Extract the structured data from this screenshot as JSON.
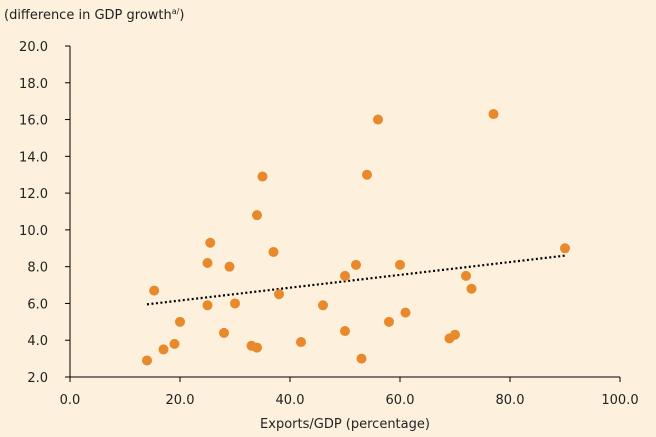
{
  "colors": {
    "background": "#fdf0dc",
    "point": "#e8892b",
    "axis": "#000000",
    "trend": "#000000"
  },
  "chart_data": {
    "type": "scatter",
    "title": "",
    "ylabel": "(difference in GDP growth",
    "ylabel_sup": "a/",
    "ylabel_close": ")",
    "xlabel": "Exports/GDP (percentage)",
    "xlim": [
      0,
      100
    ],
    "ylim": [
      2,
      20
    ],
    "x_ticks": [
      "0.0",
      "20.0",
      "40.0",
      "60.0",
      "80.0",
      "100.0"
    ],
    "y_ticks": [
      "2.0",
      "4.0",
      "6.0",
      "8.0",
      "10.0",
      "12.0",
      "14.0",
      "16.0",
      "18.0",
      "20.0"
    ],
    "grid": false,
    "points": [
      [
        14,
        2.9
      ],
      [
        15.3,
        6.7
      ],
      [
        17,
        3.5
      ],
      [
        19,
        3.8
      ],
      [
        20,
        5.0
      ],
      [
        25,
        8.2
      ],
      [
        25.5,
        9.3
      ],
      [
        25,
        5.9
      ],
      [
        28,
        4.4
      ],
      [
        29,
        8.0
      ],
      [
        30,
        6.0
      ],
      [
        33,
        3.7
      ],
      [
        34,
        3.6
      ],
      [
        34,
        10.8
      ],
      [
        35,
        12.9
      ],
      [
        37,
        8.8
      ],
      [
        38,
        6.5
      ],
      [
        42,
        3.9
      ],
      [
        46,
        5.9
      ],
      [
        50,
        7.5
      ],
      [
        50,
        4.5
      ],
      [
        52,
        8.1
      ],
      [
        53,
        3.0
      ],
      [
        54,
        13.0
      ],
      [
        56,
        16.0
      ],
      [
        58,
        5.0
      ],
      [
        60,
        8.1
      ],
      [
        61,
        5.5
      ],
      [
        69,
        4.1
      ],
      [
        70,
        4.3
      ],
      [
        72,
        7.5
      ],
      [
        73,
        6.8
      ],
      [
        77,
        16.3
      ],
      [
        90,
        9.0
      ]
    ],
    "trendline": {
      "style": "dotted",
      "x": [
        14,
        90
      ],
      "y": [
        5.95,
        8.6
      ]
    }
  }
}
